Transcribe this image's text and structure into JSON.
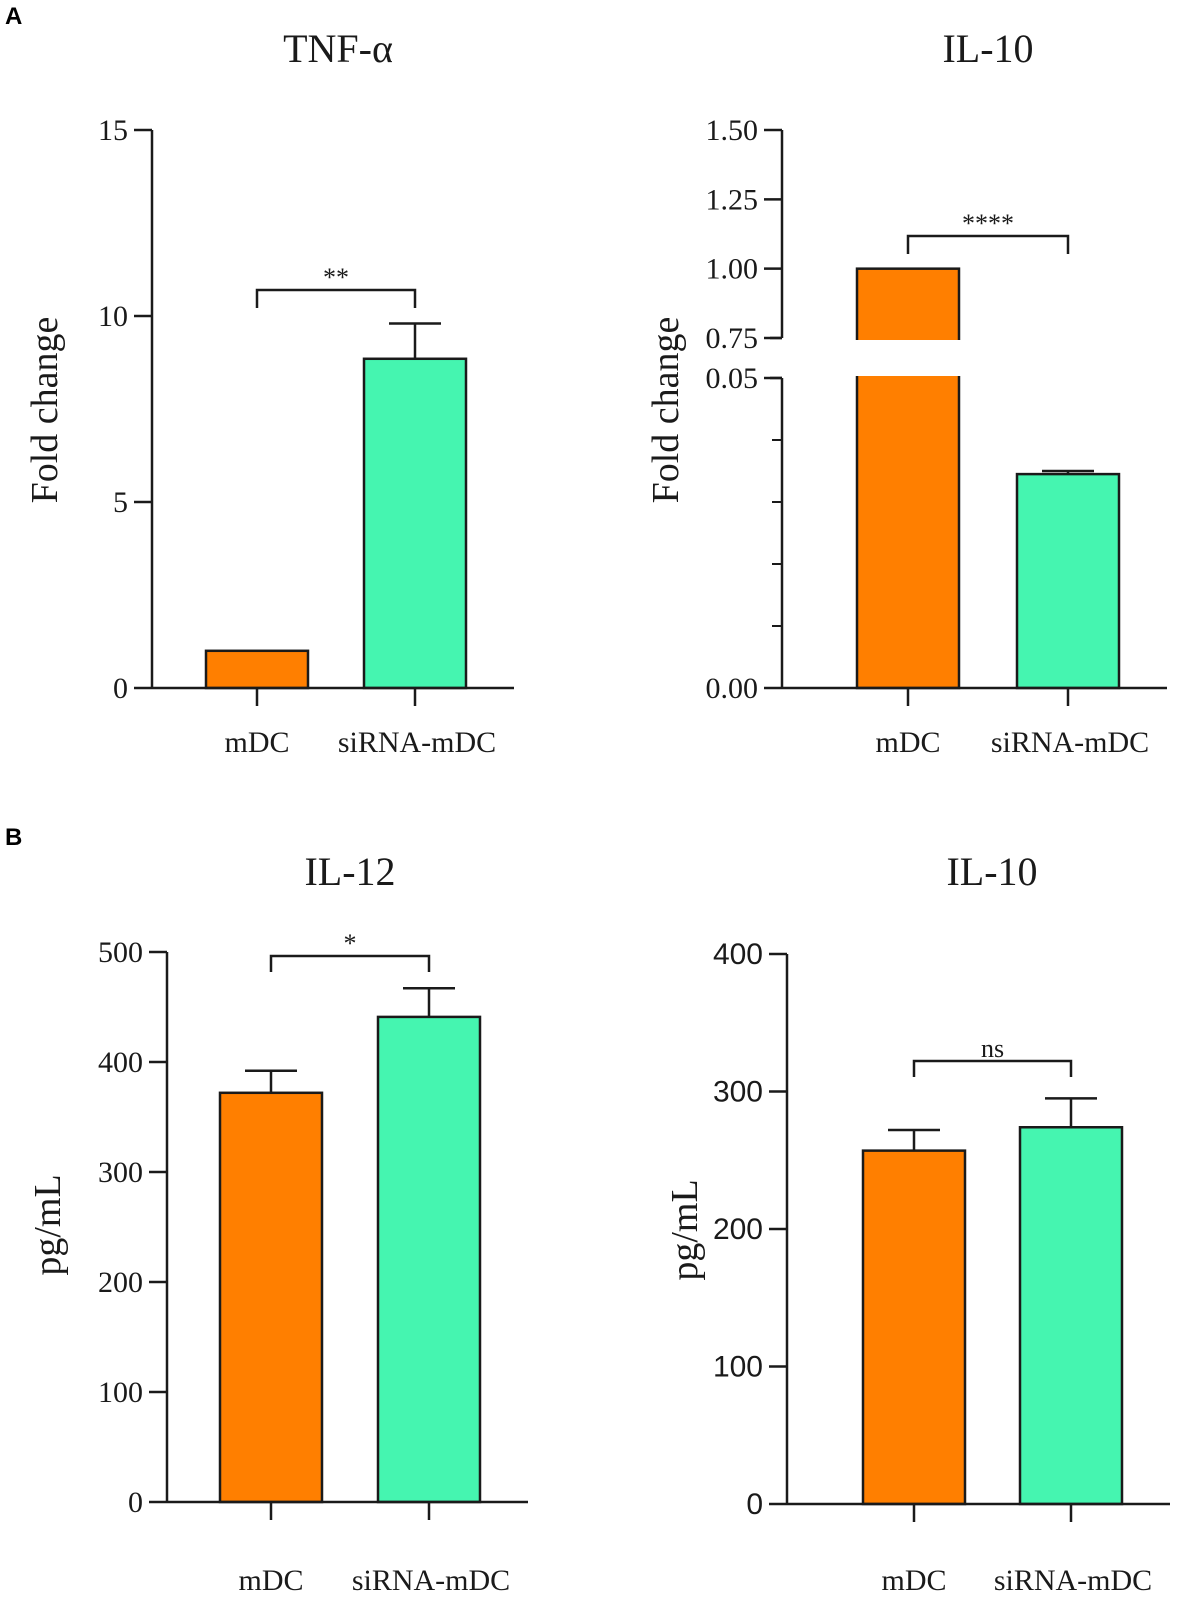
{
  "panel_labels": [
    "A",
    "B"
  ],
  "colors": {
    "mDC": "#ff7f00",
    "siRNA": "#45f5b0",
    "axis": "#1a1a1a"
  },
  "chart_data": [
    {
      "type": "bar",
      "title": "TNF-α",
      "ylabel": "Fold change",
      "categories": [
        "mDC",
        "siRNA-mDC"
      ],
      "values": [
        1.0,
        8.85
      ],
      "errors": [
        0,
        0.95
      ],
      "ylim": [
        0,
        15
      ],
      "yticks": [
        {
          "v": 0,
          "label": "0"
        },
        {
          "v": 5,
          "label": "5"
        },
        {
          "v": 10,
          "label": "10"
        },
        {
          "v": 15,
          "label": "15"
        }
      ],
      "significance": "**"
    },
    {
      "type": "bar",
      "title": "IL-10",
      "ylabel": "Fold change",
      "categories": [
        "mDC",
        "siRNA-mDC"
      ],
      "values": [
        1.0,
        0.0345
      ],
      "errors": [
        0,
        0.0005
      ],
      "ylim": [
        0,
        1.5
      ],
      "axis_break": [
        0.05,
        0.75
      ],
      "yticks": [
        {
          "v": 0,
          "label": "0.00"
        },
        {
          "v": 0.05,
          "label": "0.05"
        },
        {
          "v": 0.75,
          "label": "0.75"
        },
        {
          "v": 1.0,
          "label": "1.00"
        },
        {
          "v": 1.25,
          "label": "1.25"
        },
        {
          "v": 1.5,
          "label": "1.50"
        }
      ],
      "significance": "****"
    },
    {
      "type": "bar",
      "title": "IL-12",
      "ylabel": "pg/mL",
      "categories": [
        "mDC",
        "siRNA-mDC"
      ],
      "values": [
        372,
        441
      ],
      "errors": [
        20,
        26
      ],
      "ylim": [
        0,
        500
      ],
      "yticks": [
        {
          "v": 0,
          "label": "0"
        },
        {
          "v": 100,
          "label": "100"
        },
        {
          "v": 200,
          "label": "200"
        },
        {
          "v": 300,
          "label": "300"
        },
        {
          "v": 400,
          "label": "400"
        },
        {
          "v": 500,
          "label": "500"
        }
      ],
      "significance": "*"
    },
    {
      "type": "bar",
      "title": "IL-10",
      "ylabel": "pg/mL",
      "categories": [
        "mDC",
        "siRNA-mDC"
      ],
      "values": [
        257,
        274
      ],
      "errors": [
        15,
        21
      ],
      "ylim": [
        0,
        400
      ],
      "yticks": [
        {
          "v": 0,
          "label": "0"
        },
        {
          "v": 100,
          "label": "100"
        },
        {
          "v": 200,
          "label": "200"
        },
        {
          "v": 300,
          "label": "300"
        },
        {
          "v": 400,
          "label": "400"
        }
      ],
      "significance": "ns"
    }
  ]
}
